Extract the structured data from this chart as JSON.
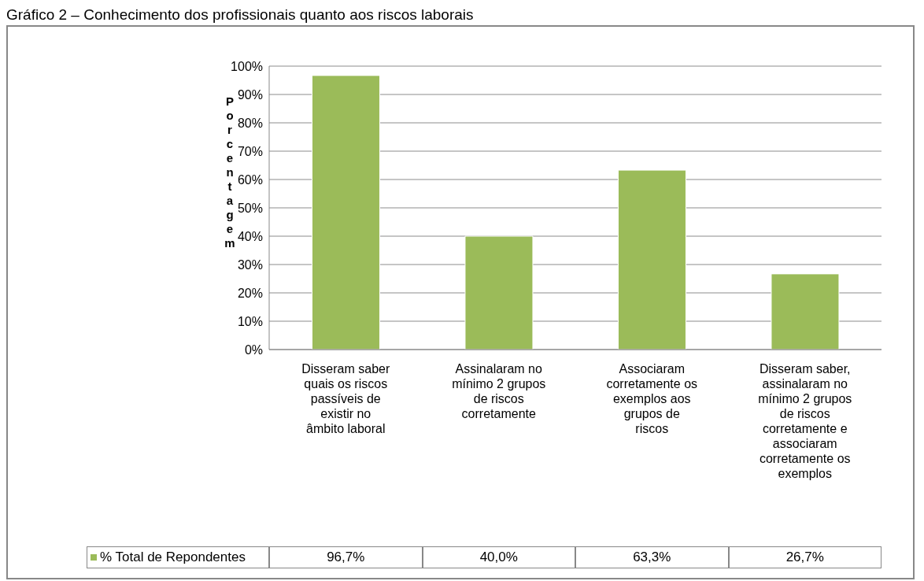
{
  "chart_data": {
    "type": "bar",
    "title": "Gráfico 2 – Conhecimento dos profissionais quanto aos riscos laborais",
    "ylabel": "Porcentagem",
    "categories": [
      "Disseram saber quais os riscos passíveis de existir no âmbito laboral",
      "Assinalaram no mínimo 2 grupos de riscos corretamente",
      "Associaram corretamente os exemplos aos grupos de riscos",
      "Disseram saber, assinalaram no mínimo 2 grupos de riscos corretamente e associaram corretamente os exemplos"
    ],
    "series": [
      {
        "name": "% Total de Repondentes",
        "color": "#9bbb59",
        "values": [
          96.7,
          40.0,
          63.3,
          26.7
        ],
        "value_labels": [
          "96,7%",
          "40,0%",
          "63,3%",
          "26,7%"
        ]
      }
    ],
    "ylim": [
      0,
      100
    ],
    "yticks": [
      {
        "value": 0,
        "label": "0%"
      },
      {
        "value": 10,
        "label": "10%"
      },
      {
        "value": 20,
        "label": "20%"
      },
      {
        "value": 30,
        "label": "30%"
      },
      {
        "value": 40,
        "label": "40%"
      },
      {
        "value": 50,
        "label": "50%"
      },
      {
        "value": 60,
        "label": "60%"
      },
      {
        "value": 70,
        "label": "70%"
      },
      {
        "value": 80,
        "label": "80%"
      },
      {
        "value": 90,
        "label": "90%"
      },
      {
        "value": 100,
        "label": "100%"
      }
    ],
    "grid": "y",
    "legend": "bottom left"
  }
}
